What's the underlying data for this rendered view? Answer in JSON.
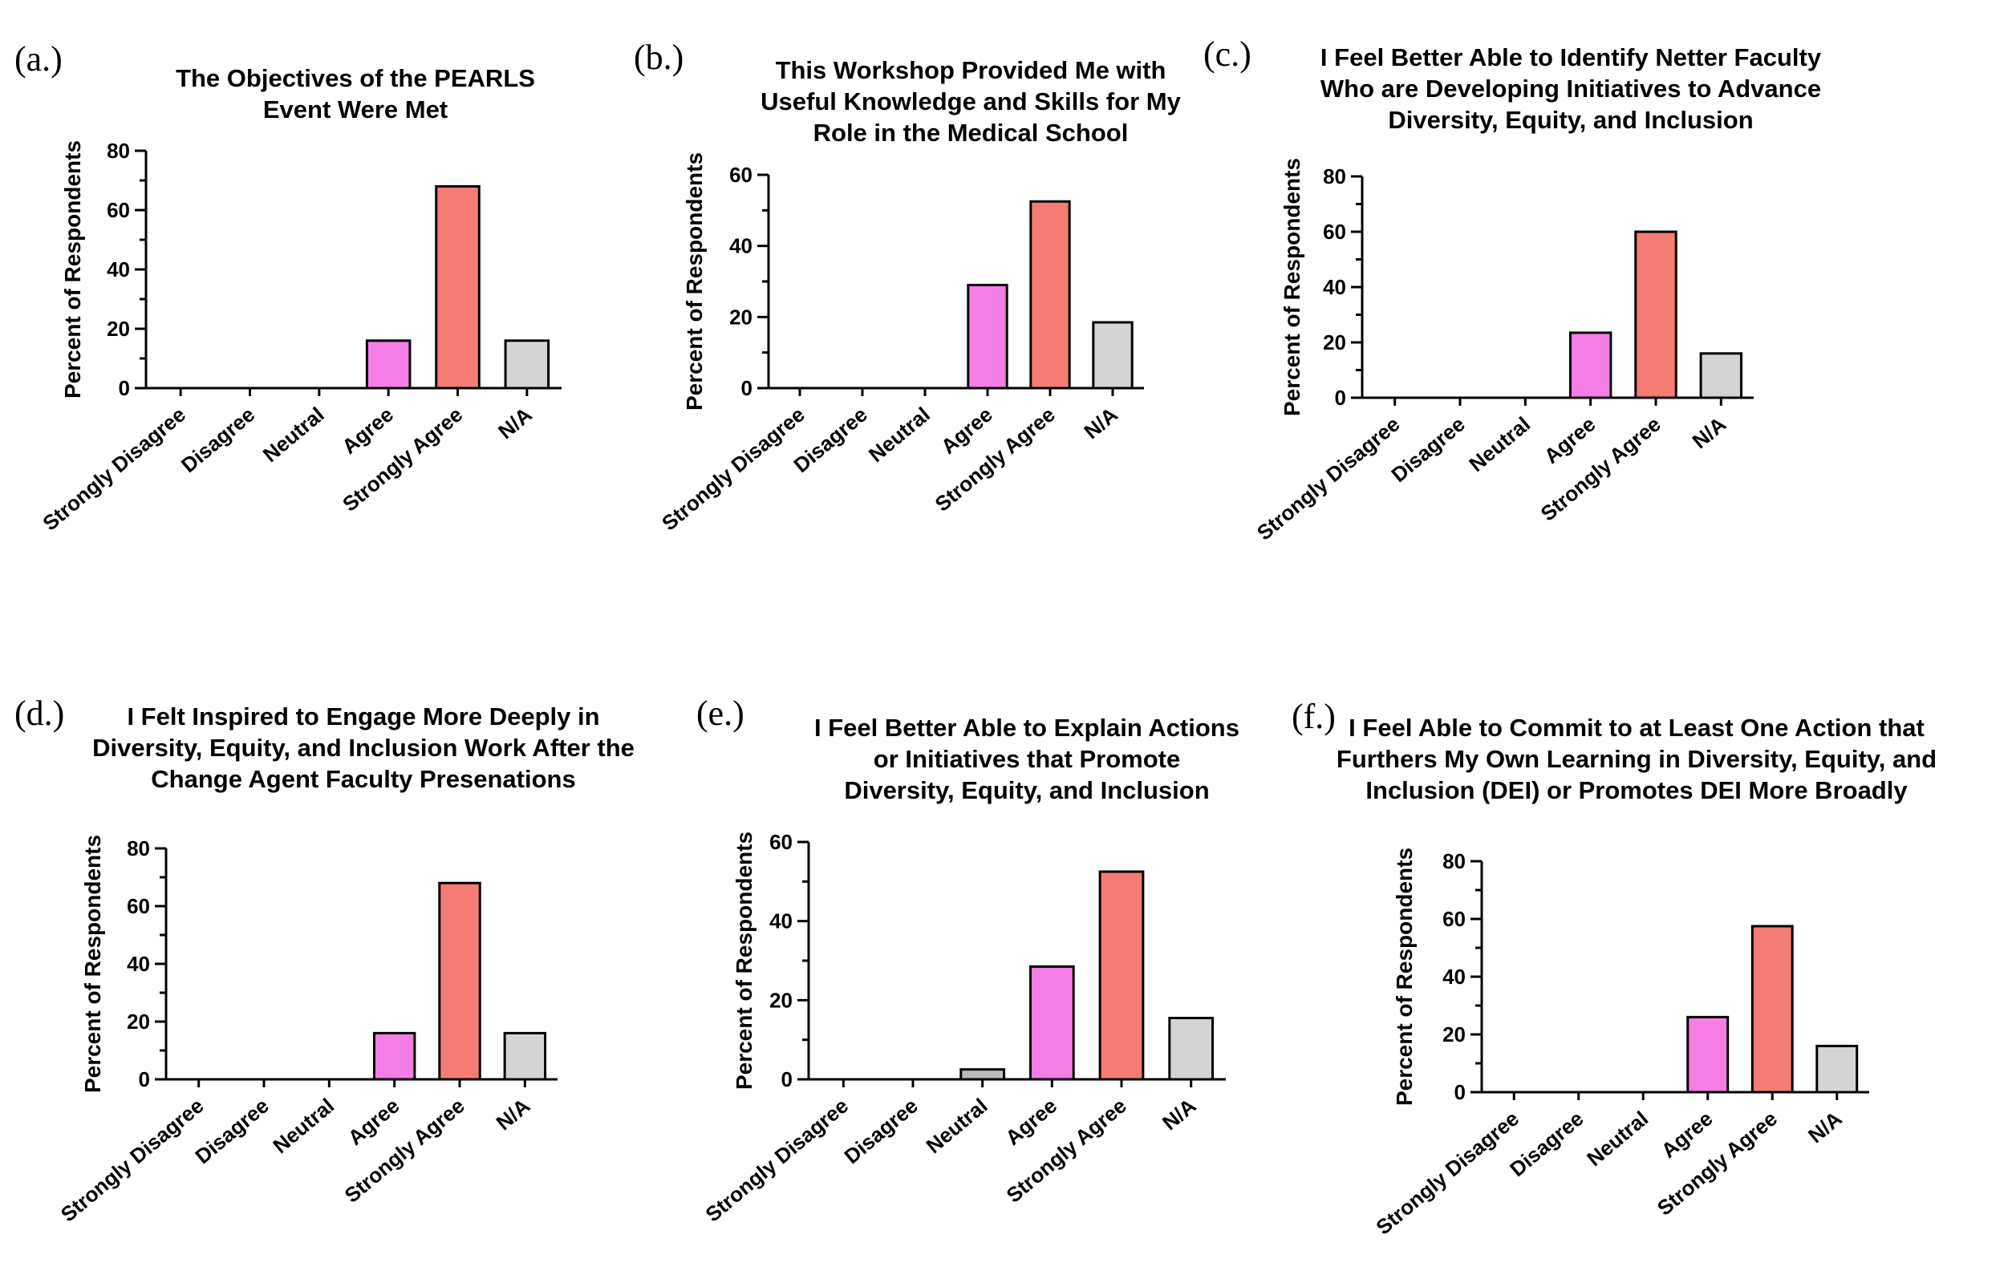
{
  "colors": {
    "Agree": "#f57ee6",
    "Strongly Agree": "#f47c74",
    "N/A": "#d4d4d4",
    "Neutral": "#bdbdbd",
    "default": "#cccccc"
  },
  "chart_data": [
    {
      "panel": "(a.)",
      "type": "bar",
      "title": [
        "The Objectives of the PEARLS",
        "Event Were Met"
      ],
      "ylabel": "Percent of Respondents",
      "xlabel": "",
      "ylim": [
        0,
        80
      ],
      "yticks": [
        0,
        20,
        40,
        60,
        80
      ],
      "categories": [
        "Strongly Disagree",
        "Disagree",
        "Neutral",
        "Agree",
        "Strongly Agree",
        "N/A"
      ],
      "values": [
        0,
        0,
        0,
        16,
        68,
        16
      ]
    },
    {
      "panel": "(b.)",
      "type": "bar",
      "title": [
        "This Workshop Provided Me with",
        "Useful Knowledge and Skills for My",
        "Role in the Medical School"
      ],
      "ylabel": "Percent of Respondents",
      "xlabel": "",
      "ylim": [
        0,
        60
      ],
      "yticks": [
        0,
        20,
        40,
        60
      ],
      "categories": [
        "Strongly Disagree",
        "Disagree",
        "Neutral",
        "Agree",
        "Strongly Agree",
        "N/A"
      ],
      "values": [
        0,
        0,
        0,
        29,
        52.5,
        18.5
      ]
    },
    {
      "panel": "(c.)",
      "type": "bar",
      "title": [
        "I Feel Better Able to Identify Netter Faculty",
        "Who are Developing Initiatives to Advance",
        "Diversity, Equity, and Inclusion"
      ],
      "ylabel": "Percent of Respondents",
      "xlabel": "",
      "ylim": [
        0,
        80
      ],
      "yticks": [
        0,
        20,
        40,
        60,
        80
      ],
      "categories": [
        "Strongly Disagree",
        "Disagree",
        "Neutral",
        "Agree",
        "Strongly Agree",
        "N/A"
      ],
      "values": [
        0,
        0,
        0,
        23.5,
        60,
        16
      ]
    },
    {
      "panel": "(d.)",
      "type": "bar",
      "title": [
        "I Felt Inspired to Engage More Deeply in",
        "Diversity, Equity, and Inclusion Work After the",
        "Change Agent Faculty Presenations"
      ],
      "ylabel": "Percent of Respondents",
      "xlabel": "",
      "ylim": [
        0,
        80
      ],
      "yticks": [
        0,
        20,
        40,
        60,
        80
      ],
      "categories": [
        "Strongly Disagree",
        "Disagree",
        "Neutral",
        "Agree",
        "Strongly Agree",
        "N/A"
      ],
      "values": [
        0,
        0,
        0,
        16,
        68,
        16
      ]
    },
    {
      "panel": "(e.)",
      "type": "bar",
      "title": [
        "I Feel Better Able to Explain Actions",
        "or Initiatives that Promote",
        "Diversity, Equity, and Inclusion"
      ],
      "ylabel": "Percent of Respondents",
      "xlabel": "",
      "ylim": [
        0,
        60
      ],
      "yticks": [
        0,
        20,
        40,
        60
      ],
      "categories": [
        "Strongly Disagree",
        "Disagree",
        "Neutral",
        "Agree",
        "Strongly Agree",
        "N/A"
      ],
      "values": [
        0,
        0,
        2.5,
        28.5,
        52.5,
        15.5
      ]
    },
    {
      "panel": "(f.)",
      "type": "bar",
      "title": [
        "I Feel Able to Commit to at Least One Action that",
        "Furthers My Own Learning in Diversity, Equity, and",
        "Inclusion (DEI) or Promotes DEI More Broadly"
      ],
      "ylabel": "Percent of Respondents",
      "xlabel": "",
      "ylim": [
        0,
        80
      ],
      "yticks": [
        0,
        20,
        40,
        60,
        80
      ],
      "categories": [
        "Strongly Disagree",
        "Disagree",
        "Neutral",
        "Agree",
        "Strongly Agree",
        "N/A"
      ],
      "values": [
        0,
        0,
        0,
        26,
        57.5,
        16
      ]
    }
  ]
}
